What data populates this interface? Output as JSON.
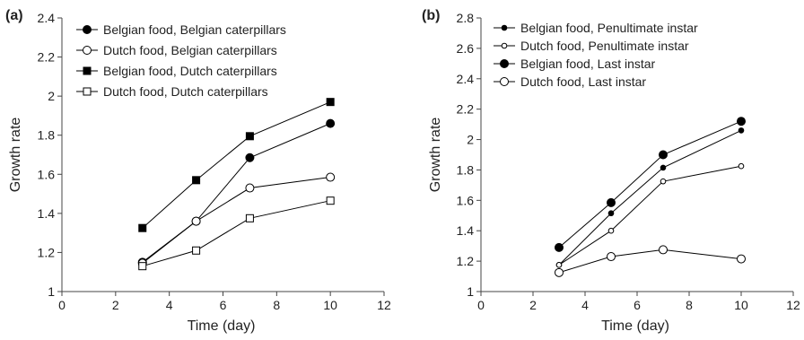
{
  "chart_data": [
    {
      "type": "line",
      "panel_label": "(a)",
      "xlabel": "Time (day)",
      "ylabel": "Growth rate",
      "xlim": [
        0,
        12
      ],
      "ylim": [
        1,
        2.4
      ],
      "xticks": [
        "0",
        "2",
        "4",
        "6",
        "8",
        "10",
        "12"
      ],
      "yticks": [
        "1",
        "1.2",
        "1.4",
        "1.6",
        "1.8",
        "2",
        "2.2",
        "2.4"
      ],
      "grid": false,
      "legend_position": "top-left",
      "series": [
        {
          "name": "Belgian food, Belgian caterpillars",
          "marker": "circle-filled",
          "x": [
            3,
            5,
            7,
            10
          ],
          "y": [
            1.15,
            1.36,
            1.685,
            1.86
          ]
        },
        {
          "name": "Dutch food, Belgian caterpillars",
          "marker": "circle-open",
          "x": [
            3,
            5,
            7,
            10
          ],
          "y": [
            1.145,
            1.36,
            1.53,
            1.585
          ]
        },
        {
          "name": "Belgian food, Dutch caterpillars",
          "marker": "square-filled",
          "x": [
            3,
            5,
            7,
            10
          ],
          "y": [
            1.325,
            1.57,
            1.795,
            1.97
          ]
        },
        {
          "name": "Dutch food, Dutch caterpillars",
          "marker": "square-open",
          "x": [
            3,
            5,
            7,
            10
          ],
          "y": [
            1.13,
            1.21,
            1.375,
            1.465
          ]
        }
      ]
    },
    {
      "type": "line",
      "panel_label": "(b)",
      "xlabel": "Time (day)",
      "ylabel": "Growth rate",
      "xlim": [
        0,
        12
      ],
      "ylim": [
        1,
        2.8
      ],
      "xticks": [
        "0",
        "2",
        "4",
        "6",
        "8",
        "10",
        "12"
      ],
      "yticks": [
        "1",
        "1.2",
        "1.4",
        "1.6",
        "1.8",
        "2",
        "2.2",
        "2.4",
        "2.6",
        "2.8"
      ],
      "grid": false,
      "legend_position": "top-left",
      "series": [
        {
          "name": "Belgian food, Penultimate instar",
          "marker": "small-circle-filled",
          "x": [
            3,
            5,
            7,
            10
          ],
          "y": [
            1.175,
            1.515,
            1.815,
            2.06
          ]
        },
        {
          "name": "Dutch food, Penultimate instar",
          "marker": "small-circle-open",
          "x": [
            3,
            5,
            7,
            10
          ],
          "y": [
            1.175,
            1.4,
            1.725,
            1.825
          ]
        },
        {
          "name": "Belgian food, Last instar",
          "marker": "circle-filled",
          "x": [
            3,
            5,
            7,
            10
          ],
          "y": [
            1.29,
            1.585,
            1.9,
            2.12
          ]
        },
        {
          "name": "Dutch food, Last instar",
          "marker": "circle-open",
          "x": [
            3,
            5,
            7,
            10
          ],
          "y": [
            1.125,
            1.23,
            1.275,
            1.215
          ]
        }
      ]
    }
  ]
}
